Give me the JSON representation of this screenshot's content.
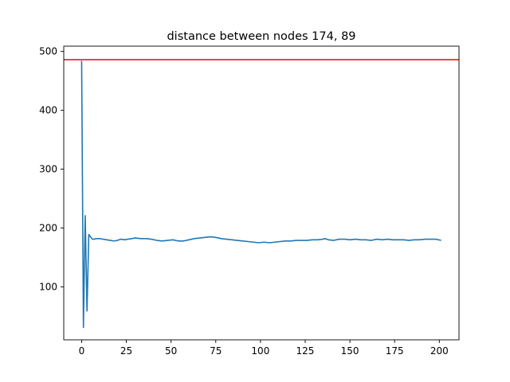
{
  "chart_data": {
    "type": "line",
    "title": "distance between nodes 174, 89",
    "xlabel": "",
    "ylabel": "",
    "xlim": [
      -10,
      211
    ],
    "ylim": [
      10,
      509
    ],
    "grid": false,
    "xticks": [
      0,
      25,
      50,
      75,
      100,
      125,
      150,
      175,
      200
    ],
    "yticks": [
      100,
      200,
      300,
      400,
      500
    ],
    "reference_line": {
      "y": 486,
      "color": "#ff0000"
    },
    "series": [
      {
        "color": "#1f77b4",
        "x": [
          0,
          1,
          2,
          3,
          4,
          5,
          6,
          7,
          8,
          10,
          12,
          14,
          16,
          18,
          20,
          22,
          24,
          26,
          28,
          30,
          33,
          36,
          39,
          42,
          45,
          48,
          51,
          54,
          57,
          60,
          63,
          66,
          69,
          72,
          75,
          78,
          81,
          84,
          87,
          90,
          93,
          96,
          99,
          102,
          105,
          108,
          111,
          114,
          117,
          120,
          123,
          126,
          129,
          132,
          135,
          136,
          138,
          141,
          144,
          147,
          150,
          153,
          156,
          159,
          162,
          165,
          168,
          171,
          174,
          177,
          180,
          183,
          186,
          189,
          192,
          195,
          198,
          201
        ],
        "y": [
          484,
          31,
          221,
          59,
          189,
          185,
          181,
          181,
          182,
          182,
          181,
          180,
          179,
          178,
          179,
          181,
          180,
          181,
          182,
          183,
          182,
          182,
          181,
          179,
          178,
          179,
          180,
          178,
          178,
          180,
          182,
          183,
          184,
          185,
          184,
          182,
          181,
          180,
          179,
          178,
          177,
          176,
          175,
          176,
          175,
          176,
          177,
          178,
          178,
          179,
          179,
          179,
          180,
          180,
          181,
          182,
          180,
          179,
          181,
          181,
          180,
          181,
          180,
          180,
          179,
          181,
          180,
          181,
          180,
          180,
          180,
          179,
          180,
          180,
          181,
          181,
          181,
          179
        ]
      }
    ]
  }
}
